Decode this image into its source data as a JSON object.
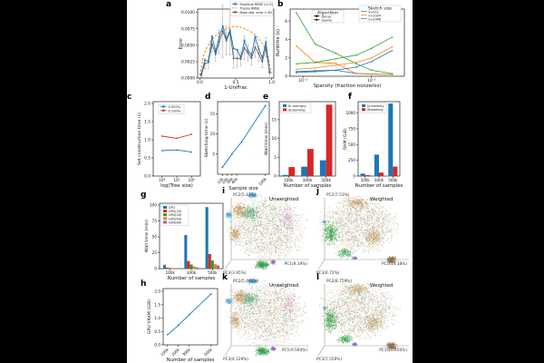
{
  "colors": {
    "background": "#000000",
    "page": "#ffffff",
    "blue": "#1f77b4",
    "orange": "#ff7f0e",
    "green": "#2ca02c",
    "red": "#d62728",
    "purple": "#9467bd",
    "gray": "#555555"
  },
  "panels": {
    "a": {
      "label": "a",
      "type": "line",
      "ylabel": "Error",
      "xlabel": "1-UniFrac",
      "yticks": [
        "0.0000",
        "0.0025",
        "0.0050",
        "0.0075",
        "0.0100"
      ],
      "ytick_values": [
        0,
        0.0025,
        0.005,
        0.0075,
        0.01
      ],
      "xticks": [
        "0.0",
        "0.5",
        "1.0"
      ],
      "xtick_values": [
        0,
        0.5,
        1
      ],
      "legend": [
        "Empirical RMSE (n=3)",
        "Theory RMSE",
        "Mean abs. error ± SD"
      ],
      "x": [
        0.02,
        0.07,
        0.12,
        0.17,
        0.22,
        0.27,
        0.32,
        0.37,
        0.42,
        0.47,
        0.52,
        0.57,
        0.62,
        0.67,
        0.72,
        0.77,
        0.82,
        0.87,
        0.92,
        0.97
      ],
      "empirical_rmse": [
        0.0006,
        0.0027,
        0.0026,
        0.0063,
        0.004,
        0.0063,
        0.0079,
        0.0059,
        0.0073,
        0.0045,
        0.0043,
        0.0031,
        0.0057,
        0.0042,
        0.0035,
        0.0063,
        0.0044,
        0.0031,
        0.0055,
        0.001
      ],
      "mean_abs_error": [
        0.0004,
        0.0022,
        0.0024,
        0.0052,
        0.0036,
        0.0055,
        0.0071,
        0.0057,
        0.007,
        0.003,
        0.003,
        0.0029,
        0.0046,
        0.0038,
        0.003,
        0.0047,
        0.0037,
        0.0025,
        0.0047,
        0.0008
      ],
      "sd": [
        0.0003,
        0.0008,
        0.0009,
        0.0013,
        0.001,
        0.0018,
        0.004,
        0.0022,
        0.0035,
        0.0015,
        0.0014,
        0.001,
        0.0018,
        0.0012,
        0.001,
        0.0016,
        0.0012,
        0.0009,
        0.0015,
        0.0004
      ],
      "theory_x": [
        0,
        0.05,
        0.1,
        0.15,
        0.2,
        0.25,
        0.3,
        0.35,
        0.4,
        0.45,
        0.5,
        0.55,
        0.6,
        0.65,
        0.7,
        0.75,
        0.8,
        0.85,
        0.9,
        0.95,
        1
      ],
      "theory_rmse": [
        0.0004,
        0.0034,
        0.0047,
        0.0056,
        0.0062,
        0.0068,
        0.0071,
        0.0074,
        0.0076,
        0.0078,
        0.0078,
        0.0078,
        0.0076,
        0.0074,
        0.0071,
        0.0068,
        0.0062,
        0.0056,
        0.0047,
        0.0034,
        0.0004
      ]
    },
    "b": {
      "label": "b",
      "type": "line",
      "ylabel": "Runtime (s)",
      "xlabel": "Sparsity (fraction nonzeros)",
      "yticks": [
        "0",
        "2",
        "4",
        "6"
      ],
      "ytick_values": [
        0,
        2,
        4,
        6
      ],
      "xticks": [
        "10⁻²",
        "10⁻¹"
      ],
      "xtick_values": [
        0.01,
        0.1
      ],
      "legend_algorithm": {
        "title": "Algorithm",
        "entries": [
          "Dense",
          "Sparse"
        ]
      },
      "legend_sketch": {
        "title": "Sketch size",
        "entries": [
          "k=512",
          "k=1024",
          "k=2048"
        ]
      },
      "x": [
        0.008,
        0.015,
        0.03,
        0.06,
        0.1,
        0.2
      ],
      "series": [
        {
          "algorithm": "Dense",
          "sketch": "k=512",
          "values": [
            0.5,
            0.6,
            0.65,
            0.3,
            0.25,
            0.2
          ]
        },
        {
          "algorithm": "Dense",
          "sketch": "k=1024",
          "values": [
            3.3,
            1.5,
            1.4,
            0.28,
            0.22,
            0.18
          ]
        },
        {
          "algorithm": "Dense",
          "sketch": "k=2048",
          "values": [
            6.9,
            3.5,
            2.5,
            1.35,
            0.65,
            0.28
          ]
        },
        {
          "algorithm": "Sparse",
          "sketch": "k=512",
          "values": [
            0.4,
            0.5,
            0.65,
            1.0,
            1.6,
            2.8
          ]
        },
        {
          "algorithm": "Sparse",
          "sketch": "k=1024",
          "values": [
            0.75,
            0.9,
            1.2,
            1.5,
            2.0,
            3.2
          ]
        },
        {
          "algorithm": "Sparse",
          "sketch": "k=2048",
          "values": [
            1.35,
            1.5,
            1.9,
            2.3,
            3.05,
            4.25
          ]
        }
      ]
    },
    "c": {
      "label": "c",
      "type": "line",
      "ylabel": "Set construction time (s)",
      "xlabel": "log(Tree size)",
      "yticks": [
        "0.0",
        "0.5",
        "1.0",
        "1.5",
        "2.0"
      ],
      "ytick_values": [
        0,
        0.5,
        1,
        1.5,
        2
      ],
      "xticks": [
        "10⁴",
        "10⁵",
        "10⁶"
      ],
      "xtick_values": [
        10000,
        100000,
        1000000
      ],
      "x": [
        10000,
        100000,
        1000000
      ],
      "series": [
        {
          "name": "0.002%",
          "values": [
            0.7,
            0.72,
            0.66
          ]
        },
        {
          "name": "0.100%",
          "values": [
            1.1,
            1.04,
            1.15
          ]
        }
      ]
    },
    "d": {
      "label": "d",
      "type": "line",
      "ylabel": "Sketching time (s)",
      "xlabel": "Sample size",
      "yticks": [
        "5",
        "10",
        "15"
      ],
      "ytick_values": [
        5,
        10,
        15
      ],
      "xticks": [
        "10k",
        "20k",
        "30k",
        "40k",
        "100k"
      ],
      "xtick_values": [
        10000,
        20000,
        30000,
        40000,
        100000
      ],
      "x": [
        10000,
        30000,
        50000,
        100000
      ],
      "sketching_time": [
        1.7,
        5.0,
        8.0,
        17.0
      ]
    },
    "e": {
      "label": "e",
      "type": "bar",
      "ylabel": "Wall time (min)",
      "xlabel": "Number of samples",
      "yticks": [
        "0",
        "5",
        "10",
        "15"
      ],
      "ytick_values": [
        0,
        5,
        10,
        15
      ],
      "categories": [
        "100k",
        "300k",
        "500k"
      ],
      "series": [
        {
          "name": "In-memory",
          "values": [
            0.3,
            2.5,
            4.2
          ]
        },
        {
          "name": "Streaming",
          "values": [
            2.4,
            7.2,
            19.0
          ]
        }
      ]
    },
    "f": {
      "label": "f",
      "type": "bar",
      "ylabel": "RAM (GiB)",
      "xlabel": "Number of samples",
      "yticks": [
        "0",
        "250",
        "500",
        "750",
        "1000"
      ],
      "ytick_values": [
        0,
        250,
        500,
        750,
        1000
      ],
      "categories": [
        "100k",
        "300k",
        "500k"
      ],
      "series": [
        {
          "name": "In-memory",
          "values": [
            40,
            340,
            1150
          ]
        },
        {
          "name": "Streaming",
          "values": [
            15,
            55,
            150
          ]
        }
      ]
    },
    "g": {
      "label": "g",
      "type": "bar",
      "ylabel": "Wall time (min)",
      "xlabel": "Number of samples",
      "yticks": [
        "0",
        "25",
        "50",
        "75",
        "100"
      ],
      "ytick_values": [
        0,
        25,
        50,
        75,
        100
      ],
      "categories": [
        "100k",
        "300k",
        "500k"
      ],
      "series": [
        {
          "name": "CPU",
          "values": [
            6,
            53,
            97
          ]
        },
        {
          "name": "GPU(1X)",
          "values": [
            1.5,
            12,
            23
          ]
        },
        {
          "name": "GPU(2X)",
          "values": [
            1.0,
            6.5,
            13
          ]
        },
        {
          "name": "GPU(4X)",
          "values": [
            0.8,
            3.5,
            7
          ]
        },
        {
          "name": "GPU(8X)",
          "values": [
            0.6,
            2,
            5
          ]
        }
      ]
    },
    "h": {
      "label": "h",
      "type": "line",
      "ylabel": "GPU VRAM (GiB)",
      "xlabel": "Number of samples",
      "yticks": [
        "0.0",
        "0.5",
        "1.0",
        "1.5",
        "2.0"
      ],
      "ytick_values": [
        0,
        0.5,
        1,
        1.5,
        2
      ],
      "xticks": [
        "100k",
        "200k",
        "300k",
        "500k"
      ],
      "xtick_values": [
        100000,
        200000,
        300000,
        500000
      ],
      "x": [
        100000,
        200000,
        300000,
        500000
      ],
      "gpu_vram": [
        0.38,
        0.73,
        1.13,
        1.9
      ]
    },
    "i": {
      "label": "i",
      "type": "pcoa",
      "title": "Unweighted",
      "pc2": "PC2(5.12%)",
      "pc1": "PC1(9.19%)",
      "pc3": "PC3(3.95%)",
      "spec": "unweighted",
      "seed": 7
    },
    "j": {
      "label": "j",
      "type": "pcoa",
      "title": "Weighted",
      "pc2": "PC2(7.53%)",
      "pc1": "PC1(14.38%)",
      "pc3": "PC3(6.72%)",
      "spec": "weighted",
      "seed": 11
    },
    "k": {
      "label": "k",
      "type": "pcoa",
      "title": "Unweighted",
      "pc2": "PC2(5.485%)",
      "pc1": "PC1(9.560%)",
      "pc3": "PC3(4.129%)",
      "spec": "unweighted",
      "seed": 13
    },
    "l": {
      "label": "l",
      "type": "pcoa",
      "title": "Weighted",
      "pc2": "PC2(8.759%)",
      "pc1": "PC1(16.450%)",
      "pc3": "PC3(7.559%)",
      "spec": "weighted",
      "seed": 17
    }
  },
  "pcoa_palette": [
    [
      "#bd9a62",
      30
    ],
    [
      "#90984f",
      16
    ],
    [
      "#b3a694",
      12
    ],
    [
      "#3d9c4a",
      12
    ],
    [
      "#d389bd",
      8
    ],
    [
      "#a5763f",
      10
    ],
    [
      "#c4695a",
      4
    ],
    [
      "#63b1df",
      4
    ],
    [
      "#52a88f",
      4
    ]
  ],
  "pcoa": {
    "unweighted": {
      "base": {
        "n": 2300,
        "c": [
          0.5,
          0.45
        ],
        "r": [
          0.4,
          0.36
        ]
      },
      "clusters": [
        {
          "color": "#49a8e0",
          "c": [
            0.33,
            0.07
          ],
          "r": [
            0.05,
            0.028
          ],
          "n": 170
        },
        {
          "color": "#49a8e0",
          "c": [
            0.07,
            0.3
          ],
          "r": [
            0.035,
            0.035
          ],
          "n": 130
        },
        {
          "color": "#2f9e44",
          "c": [
            0.44,
            0.88
          ],
          "r": [
            0.075,
            0.045
          ],
          "n": 330
        },
        {
          "color": "#43a06c",
          "c": [
            0.3,
            0.28
          ],
          "r": [
            0.1,
            0.09
          ],
          "n": 240
        },
        {
          "color": "#8f5fb0",
          "c": [
            0.56,
            0.85
          ],
          "r": [
            0.03,
            0.022
          ],
          "n": 90
        },
        {
          "color": "#bd9a62",
          "c": [
            0.19,
            0.25
          ],
          "r": [
            0.09,
            0.08
          ],
          "n": 320
        },
        {
          "color": "#bd9a62",
          "c": [
            0.14,
            0.52
          ],
          "r": [
            0.06,
            0.09
          ],
          "n": 220
        },
        {
          "color": "#d389bd",
          "c": [
            0.72,
            0.35
          ],
          "r": [
            0.07,
            0.12
          ],
          "n": 120
        }
      ]
    },
    "weighted": {
      "base": {
        "n": 2100,
        "c": [
          0.44,
          0.42
        ],
        "r": [
          0.38,
          0.3
        ]
      },
      "clusters": [
        {
          "color": "#8a6a3b",
          "c": [
            0.78,
            0.82
          ],
          "r": [
            0.05,
            0.038
          ],
          "n": 300
        },
        {
          "color": "#2f9e44",
          "c": [
            0.15,
            0.52
          ],
          "r": [
            0.07,
            0.13
          ],
          "n": 380
        },
        {
          "color": "#2f9e44",
          "c": [
            0.3,
            0.74
          ],
          "r": [
            0.08,
            0.05
          ],
          "n": 180
        },
        {
          "color": "#8f5fb0",
          "c": [
            0.4,
            0.8
          ],
          "r": [
            0.024,
            0.02
          ],
          "n": 70
        },
        {
          "color": "#49a8e0",
          "c": [
            0.09,
            0.38
          ],
          "r": [
            0.02,
            0.02
          ],
          "n": 45
        },
        {
          "color": "#bd9a62",
          "c": [
            0.42,
            0.16
          ],
          "r": [
            0.13,
            0.07
          ],
          "n": 300
        },
        {
          "color": "#bd9a62",
          "c": [
            0.6,
            0.55
          ],
          "r": [
            0.1,
            0.1
          ],
          "n": 250
        }
      ]
    }
  }
}
